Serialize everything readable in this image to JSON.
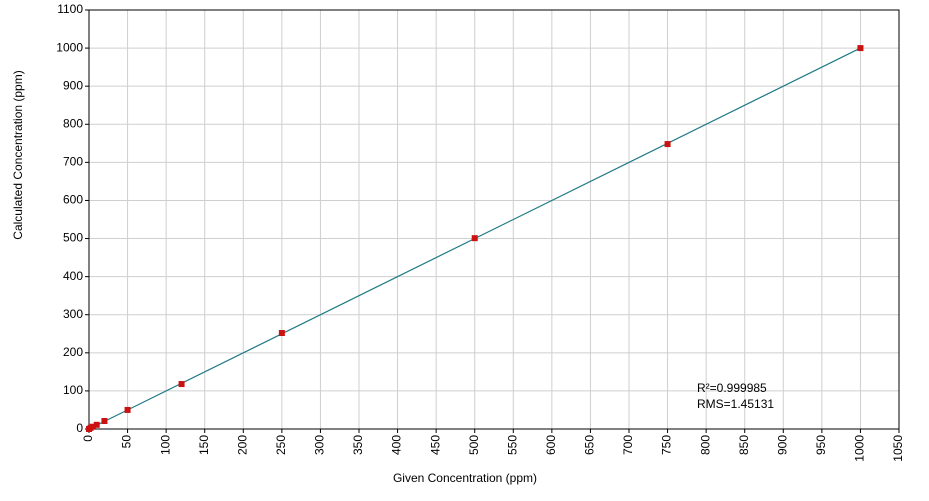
{
  "chart_data": {
    "type": "scatter",
    "xlabel": "Given Concentration (ppm)",
    "ylabel": "Calculated Concentration (ppm)",
    "xlim": [
      0,
      1050
    ],
    "ylim": [
      0,
      1100
    ],
    "x_tick_step": 50,
    "y_tick_step": 100,
    "grid": true,
    "x_tick_labels": [
      "0",
      "50",
      "100",
      "150",
      "200",
      "250",
      "300",
      "350",
      "400",
      "450",
      "500",
      "550",
      "600",
      "650",
      "700",
      "750",
      "800",
      "850",
      "900",
      "950",
      "1000",
      "1050"
    ],
    "y_tick_labels": [
      "0",
      "100",
      "200",
      "300",
      "400",
      "500",
      "600",
      "700",
      "800",
      "900",
      "1000",
      "1100"
    ],
    "series": [
      {
        "type": "scatter",
        "color": "#cc1111",
        "points": [
          {
            "x": 0,
            "y": 0
          },
          {
            "x": 2,
            "y": 3
          },
          {
            "x": 5,
            "y": 6
          },
          {
            "x": 10,
            "y": 11
          },
          {
            "x": 20,
            "y": 21
          },
          {
            "x": 50,
            "y": 50
          },
          {
            "x": 120,
            "y": 118
          },
          {
            "x": 250,
            "y": 252
          },
          {
            "x": 500,
            "y": 501
          },
          {
            "x": 750,
            "y": 748
          },
          {
            "x": 1000,
            "y": 1000
          }
        ]
      },
      {
        "type": "line",
        "color": "#1f7a86",
        "points": [
          {
            "x": 0,
            "y": 0
          },
          {
            "x": 1000,
            "y": 1000
          }
        ]
      }
    ],
    "annotations": [
      "R²=0.999985",
      "RMS=1.45131"
    ]
  }
}
